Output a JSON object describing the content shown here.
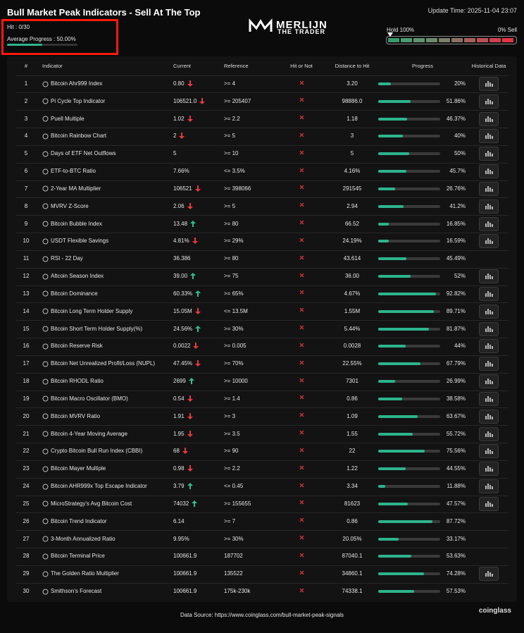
{
  "header": {
    "title": "Bull Market Peak Indicators - Sell At The Top",
    "update_time": "Update Time: 2025-11-04 23:07",
    "logo": {
      "line1": "MERLIJN",
      "line2": "THE TRADER"
    },
    "gauge": {
      "left": "Hold 100%",
      "right": "0% Sell"
    }
  },
  "summary": {
    "hit": "Hit : 0/30",
    "average_progress": {
      "value": 50,
      "label": "Average Progress : 50.00%"
    }
  },
  "table": {
    "columns": [
      "#",
      "Indicator",
      "Current",
      "Reference",
      "Hit or Not",
      "Distance to Hit",
      "Progress",
      "Historical Data"
    ],
    "rows": [
      {
        "n": 1,
        "indicator": "Bitcoin Ahr999 Index",
        "current": "0.80",
        "trend": "down",
        "reference": ">= 4",
        "distance": "3.20",
        "progress": {
          "value": 20,
          "label": "20%"
        },
        "history": true
      },
      {
        "n": 2,
        "indicator": "Pi Cycle Top Indicator",
        "current": "106521.0",
        "trend": "down",
        "reference": ">= 205407",
        "distance": "98886.0",
        "progress": {
          "value": 51.86,
          "label": "51.86%"
        },
        "history": true
      },
      {
        "n": 3,
        "indicator": "Puell Multiple",
        "current": "1.02",
        "trend": "down",
        "reference": ">= 2.2",
        "distance": "1.18",
        "progress": {
          "value": 46.37,
          "label": "46.37%"
        },
        "history": true
      },
      {
        "n": 4,
        "indicator": "Bitcoin Rainbow Chart",
        "current": "2",
        "trend": "down",
        "reference": ">= 5",
        "distance": "3",
        "progress": {
          "value": 40,
          "label": "40%"
        },
        "history": true
      },
      {
        "n": 5,
        "indicator": "Days of ETF Net Outflows",
        "current": "5",
        "trend": null,
        "reference": ">= 10",
        "distance": "5",
        "progress": {
          "value": 50,
          "label": "50%"
        },
        "history": true
      },
      {
        "n": 6,
        "indicator": "ETF-to-BTC Ratio",
        "current": "7.66%",
        "trend": null,
        "reference": "<= 3.5%",
        "distance": "4.16%",
        "progress": {
          "value": 45.7,
          "label": "45.7%"
        },
        "history": true
      },
      {
        "n": 7,
        "indicator": "2-Year MA Multiplier",
        "current": "106521",
        "trend": "down",
        "reference": ">= 398066",
        "distance": "291545",
        "progress": {
          "value": 26.76,
          "label": "26.76%"
        },
        "history": true
      },
      {
        "n": 8,
        "indicator": "MVRV Z-Score",
        "current": "2.06",
        "trend": "down",
        "reference": ">= 5",
        "distance": "2.94",
        "progress": {
          "value": 41.2,
          "label": "41.2%"
        },
        "history": true
      },
      {
        "n": 9,
        "indicator": "Bitcoin Bubble Index",
        "current": "13.48",
        "trend": "up",
        "reference": ">= 80",
        "distance": "66.52",
        "progress": {
          "value": 16.85,
          "label": "16.85%"
        },
        "history": true
      },
      {
        "n": 10,
        "indicator": "USDT Flexible Savings",
        "current": "4.81%",
        "trend": "down",
        "reference": ">= 29%",
        "distance": "24.19%",
        "progress": {
          "value": 16.59,
          "label": "16.59%"
        },
        "history": true
      },
      {
        "n": 11,
        "indicator": "RSI - 22 Day",
        "current": "36.386",
        "trend": null,
        "reference": ">= 80",
        "distance": "43.614",
        "progress": {
          "value": 45.49,
          "label": "45.49%"
        },
        "history": false
      },
      {
        "n": 12,
        "indicator": "Altcoin Season Index",
        "current": "39.00",
        "trend": "up",
        "reference": ">= 75",
        "distance": "36.00",
        "progress": {
          "value": 52,
          "label": "52%"
        },
        "history": true
      },
      {
        "n": 13,
        "indicator": "Bitcoin Dominance",
        "current": "60.33%",
        "trend": "up",
        "reference": ">= 65%",
        "distance": "4.67%",
        "progress": {
          "value": 92.82,
          "label": "92.82%"
        },
        "history": true
      },
      {
        "n": 14,
        "indicator": "Bitcoin Long Term Holder Supply",
        "current": "15.05M",
        "trend": "down",
        "reference": "<= 13.5M",
        "distance": "1.55M",
        "progress": {
          "value": 89.71,
          "label": "89.71%"
        },
        "history": true
      },
      {
        "n": 15,
        "indicator": "Bitcoin Short Term Holder Supply(%)",
        "current": "24.56%",
        "trend": "up",
        "reference": ">= 30%",
        "distance": "5.44%",
        "progress": {
          "value": 81.87,
          "label": "81.87%"
        },
        "history": true
      },
      {
        "n": 16,
        "indicator": "Bitcoin Reserve Risk",
        "current": "0.0022",
        "trend": "down",
        "reference": ">= 0.005",
        "distance": "0.0028",
        "progress": {
          "value": 44,
          "label": "44%"
        },
        "history": true
      },
      {
        "n": 17,
        "indicator": "Bitcoin Net Unrealized Profit/Loss (NUPL)",
        "current": "47.45%",
        "trend": "down",
        "reference": ">= 70%",
        "distance": "22.55%",
        "progress": {
          "value": 67.79,
          "label": "67.79%"
        },
        "history": true
      },
      {
        "n": 18,
        "indicator": "Bitcoin RHODL Ratio",
        "current": "2699",
        "trend": "up",
        "reference": ">= 10000",
        "distance": "7301",
        "progress": {
          "value": 26.99,
          "label": "26.99%"
        },
        "history": true
      },
      {
        "n": 19,
        "indicator": "Bitcoin Macro Oscillator (BMO)",
        "current": "0.54",
        "trend": "down",
        "reference": ">= 1.4",
        "distance": "0.86",
        "progress": {
          "value": 38.58,
          "label": "38.58%"
        },
        "history": true
      },
      {
        "n": 20,
        "indicator": "Bitcoin MVRV Ratio",
        "current": "1.91",
        "trend": "down",
        "reference": ">= 3",
        "distance": "1.09",
        "progress": {
          "value": 63.67,
          "label": "63.67%"
        },
        "history": true
      },
      {
        "n": 21,
        "indicator": "Bitcoin 4-Year Moving Average",
        "current": "1.95",
        "trend": "down",
        "reference": ">= 3.5",
        "distance": "1.55",
        "progress": {
          "value": 55.72,
          "label": "55.72%"
        },
        "history": true
      },
      {
        "n": 22,
        "indicator": "Crypto Bitcoin Bull Run Index (CBBI)",
        "current": "68",
        "trend": "down",
        "reference": ">= 90",
        "distance": "22",
        "progress": {
          "value": 75.56,
          "label": "75.56%"
        },
        "history": true
      },
      {
        "n": 23,
        "indicator": "Bitcoin Mayer Multiple",
        "current": "0.98",
        "trend": "down",
        "reference": ">= 2.2",
        "distance": "1.22",
        "progress": {
          "value": 44.55,
          "label": "44.55%"
        },
        "history": true
      },
      {
        "n": 24,
        "indicator": "Bitcoin AHR999x Top Escape Indicator",
        "current": "3.79",
        "trend": "up",
        "reference": "<= 0.45",
        "distance": "3.34",
        "progress": {
          "value": 11.88,
          "label": "11.88%"
        },
        "history": true
      },
      {
        "n": 25,
        "indicator": "MicroStrategy's Avg Bitcoin Cost",
        "current": "74032",
        "trend": "up",
        "reference": ">= 155655",
        "distance": "81623",
        "progress": {
          "value": 47.57,
          "label": "47.57%"
        },
        "history": true
      },
      {
        "n": 26,
        "indicator": "Bitcoin Trend Indicator",
        "current": "6.14",
        "trend": null,
        "reference": ">= 7",
        "distance": "0.86",
        "progress": {
          "value": 87.72,
          "label": "87.72%"
        },
        "history": false
      },
      {
        "n": 27,
        "indicator": "3-Month Annualized Ratio",
        "current": "9.95%",
        "trend": null,
        "reference": ">= 30%",
        "distance": "20.05%",
        "progress": {
          "value": 33.17,
          "label": "33.17%"
        },
        "history": false
      },
      {
        "n": 28,
        "indicator": "Bitcoin Terminal Price",
        "current": "100661.9",
        "trend": null,
        "reference": "187702",
        "distance": "87040.1",
        "progress": {
          "value": 53.63,
          "label": "53.63%"
        },
        "history": false
      },
      {
        "n": 29,
        "indicator": "The Golden Ratio Multiplier",
        "current": "100661.9",
        "trend": null,
        "reference": "135522",
        "distance": "34860.1",
        "progress": {
          "value": 74.28,
          "label": "74.28%"
        },
        "history": true
      },
      {
        "n": 30,
        "indicator": "Smithson's Forecast",
        "current": "100661.9",
        "trend": null,
        "reference": "175k-230k",
        "distance": "74338.1",
        "progress": {
          "value": 57.53,
          "label": "57.53%"
        },
        "history": false
      }
    ]
  },
  "footer": {
    "source": "Data Source: https://www.coinglass.com/bull-market-peak-signals",
    "brand": "coinglass"
  }
}
